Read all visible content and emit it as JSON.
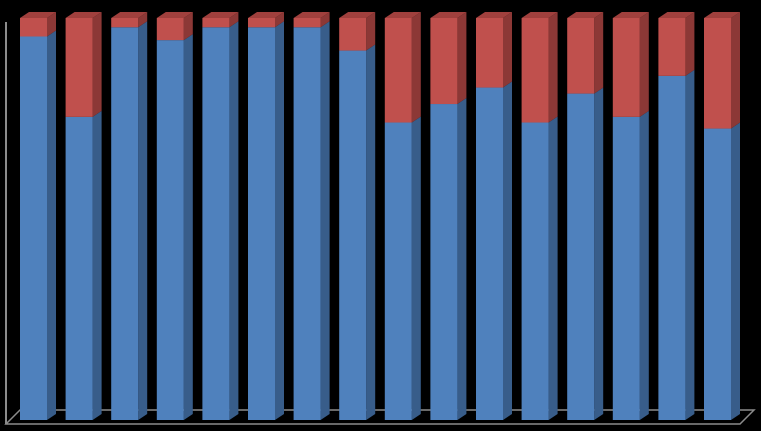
{
  "chart_data": {
    "type": "bar",
    "stacked": true,
    "percent_stacked": true,
    "three_d": true,
    "grid": false,
    "legend": "none",
    "categories": [
      "",
      "",
      "",
      "",
      "",
      "",
      "",
      "",
      "",
      "",
      "",
      "",
      "",
      "",
      "",
      ""
    ],
    "ylim": [
      0,
      100
    ],
    "series": [
      {
        "color": "#4F81BD",
        "side_color": "#385D8A",
        "top_color": "#5E8FC8",
        "values": [
          95.4,
          75.4,
          97.7,
          94.5,
          97.7,
          97.7,
          97.7,
          91.9,
          74.0,
          78.6,
          82.7,
          74.0,
          81.2,
          75.4,
          85.6,
          72.5
        ]
      },
      {
        "color": "#C0504D",
        "side_color": "#8C3836",
        "top_color": "#A0403D",
        "values": [
          4.6,
          24.6,
          2.3,
          5.5,
          2.3,
          2.3,
          2.3,
          8.1,
          26.0,
          21.4,
          17.3,
          26.0,
          18.8,
          24.6,
          14.4,
          27.5
        ]
      }
    ],
    "axis_color": "#8C8C8C"
  }
}
